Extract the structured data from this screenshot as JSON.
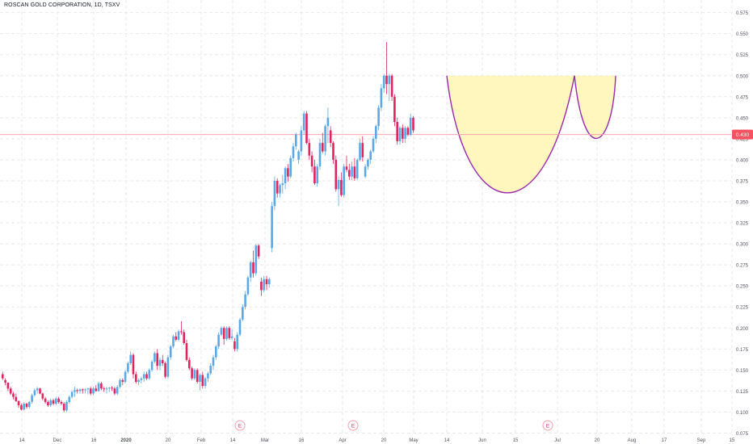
{
  "header": {
    "title": "ROSCAN GOLD CORPORATION, 1D, TSXV"
  },
  "price_label": "0.430",
  "earnings_marker": "E",
  "colors": {
    "up": "#5ba8e6",
    "down": "#e0245e",
    "resistance_line": "#f4a3b0",
    "pattern_fill": "#fff6b3",
    "pattern_stroke": "#9c27b0",
    "grid": "#e6e9ee",
    "axis_text": "#50535e",
    "price_label_bg": "#f7525f"
  },
  "chart_data": {
    "type": "candlestick",
    "title": "ROSCAN GOLD CORPORATION, 1D, TSXV",
    "y_ticks": [
      "0.075",
      "0.100",
      "0.125",
      "0.150",
      "0.175",
      "0.200",
      "0.225",
      "0.250",
      "0.275",
      "0.300",
      "0.325",
      "0.350",
      "0.375",
      "0.400",
      "0.425",
      "0.450",
      "0.475",
      "0.500",
      "0.525",
      "0.550",
      "0.575"
    ],
    "x_ticks": [
      "14",
      "Dec",
      "16",
      "2020",
      "20",
      "Feb",
      "14",
      "Mar",
      "16",
      "Apr",
      "20",
      "May",
      "14",
      "Jun",
      "15",
      "Jul",
      "20",
      "Aug",
      "17",
      "Sep",
      "15"
    ],
    "ylim": [
      0.062,
      0.59
    ],
    "grid": true,
    "horizontal_line": 0.43,
    "cup_and_handle": {
      "rim": 0.5,
      "cup_bottom": 0.348,
      "handle_bottom": 0.42
    },
    "candles": [
      [
        0.145,
        0.148,
        0.138,
        0.14
      ],
      [
        0.138,
        0.14,
        0.132,
        0.135
      ],
      [
        0.135,
        0.135,
        0.125,
        0.128
      ],
      [
        0.128,
        0.13,
        0.12,
        0.122
      ],
      [
        0.122,
        0.124,
        0.115,
        0.118
      ],
      [
        0.118,
        0.122,
        0.112,
        0.113
      ],
      [
        0.113,
        0.114,
        0.105,
        0.108
      ],
      [
        0.108,
        0.11,
        0.102,
        0.103
      ],
      [
        0.103,
        0.112,
        0.102,
        0.11
      ],
      [
        0.11,
        0.111,
        0.104,
        0.106
      ],
      [
        0.106,
        0.113,
        0.104,
        0.112
      ],
      [
        0.112,
        0.122,
        0.11,
        0.12
      ],
      [
        0.12,
        0.128,
        0.118,
        0.126
      ],
      [
        0.126,
        0.13,
        0.122,
        0.128
      ],
      [
        0.128,
        0.129,
        0.121,
        0.122
      ],
      [
        0.122,
        0.123,
        0.114,
        0.116
      ],
      [
        0.116,
        0.118,
        0.11,
        0.112
      ],
      [
        0.112,
        0.114,
        0.106,
        0.108
      ],
      [
        0.108,
        0.116,
        0.106,
        0.114
      ],
      [
        0.114,
        0.116,
        0.108,
        0.11
      ],
      [
        0.11,
        0.118,
        0.108,
        0.116
      ],
      [
        0.116,
        0.118,
        0.11,
        0.112
      ],
      [
        0.112,
        0.114,
        0.108,
        0.11
      ],
      [
        0.11,
        0.112,
        0.1,
        0.102
      ],
      [
        0.102,
        0.114,
        0.1,
        0.112
      ],
      [
        0.112,
        0.12,
        0.11,
        0.118
      ],
      [
        0.118,
        0.126,
        0.116,
        0.124
      ],
      [
        0.124,
        0.13,
        0.118,
        0.126
      ],
      [
        0.126,
        0.128,
        0.122,
        0.125
      ],
      [
        0.125,
        0.128,
        0.122,
        0.127
      ],
      [
        0.127,
        0.128,
        0.122,
        0.126
      ],
      [
        0.126,
        0.128,
        0.122,
        0.127
      ],
      [
        0.127,
        0.129,
        0.121,
        0.128
      ],
      [
        0.128,
        0.13,
        0.12,
        0.122
      ],
      [
        0.122,
        0.13,
        0.12,
        0.128
      ],
      [
        0.128,
        0.132,
        0.124,
        0.125
      ],
      [
        0.125,
        0.136,
        0.124,
        0.134
      ],
      [
        0.134,
        0.136,
        0.126,
        0.128
      ],
      [
        0.128,
        0.13,
        0.124,
        0.127
      ],
      [
        0.127,
        0.13,
        0.122,
        0.128
      ],
      [
        0.128,
        0.13,
        0.124,
        0.129
      ],
      [
        0.129,
        0.131,
        0.125,
        0.128
      ],
      [
        0.128,
        0.13,
        0.12,
        0.122
      ],
      [
        0.122,
        0.132,
        0.12,
        0.13
      ],
      [
        0.13,
        0.14,
        0.128,
        0.138
      ],
      [
        0.138,
        0.14,
        0.132,
        0.136
      ],
      [
        0.136,
        0.15,
        0.134,
        0.148
      ],
      [
        0.148,
        0.16,
        0.146,
        0.158
      ],
      [
        0.158,
        0.172,
        0.156,
        0.168
      ],
      [
        0.168,
        0.17,
        0.14,
        0.145
      ],
      [
        0.145,
        0.148,
        0.134,
        0.136
      ],
      [
        0.136,
        0.14,
        0.132,
        0.138
      ],
      [
        0.138,
        0.142,
        0.134,
        0.14
      ],
      [
        0.14,
        0.148,
        0.136,
        0.145
      ],
      [
        0.145,
        0.148,
        0.138,
        0.14
      ],
      [
        0.14,
        0.152,
        0.138,
        0.15
      ],
      [
        0.15,
        0.162,
        0.148,
        0.16
      ],
      [
        0.16,
        0.172,
        0.158,
        0.17
      ],
      [
        0.17,
        0.175,
        0.15,
        0.155
      ],
      [
        0.155,
        0.165,
        0.15,
        0.162
      ],
      [
        0.162,
        0.168,
        0.155,
        0.158
      ],
      [
        0.158,
        0.16,
        0.14,
        0.142
      ],
      [
        0.142,
        0.168,
        0.14,
        0.165
      ],
      [
        0.165,
        0.18,
        0.162,
        0.178
      ],
      [
        0.178,
        0.192,
        0.176,
        0.19
      ],
      [
        0.19,
        0.195,
        0.184,
        0.186
      ],
      [
        0.186,
        0.198,
        0.184,
        0.196
      ],
      [
        0.196,
        0.208,
        0.192,
        0.195
      ],
      [
        0.195,
        0.198,
        0.18,
        0.182
      ],
      [
        0.182,
        0.186,
        0.16,
        0.162
      ],
      [
        0.162,
        0.165,
        0.15,
        0.152
      ],
      [
        0.152,
        0.154,
        0.138,
        0.14
      ],
      [
        0.14,
        0.152,
        0.138,
        0.15
      ],
      [
        0.15,
        0.152,
        0.134,
        0.136
      ],
      [
        0.136,
        0.146,
        0.126,
        0.144
      ],
      [
        0.144,
        0.148,
        0.128,
        0.131
      ],
      [
        0.131,
        0.142,
        0.128,
        0.14
      ],
      [
        0.14,
        0.148,
        0.136,
        0.146
      ],
      [
        0.146,
        0.158,
        0.144,
        0.155
      ],
      [
        0.155,
        0.168,
        0.15,
        0.165
      ],
      [
        0.165,
        0.18,
        0.162,
        0.178
      ],
      [
        0.178,
        0.195,
        0.175,
        0.192
      ],
      [
        0.192,
        0.202,
        0.19,
        0.2
      ],
      [
        0.2,
        0.202,
        0.18,
        0.187
      ],
      [
        0.187,
        0.202,
        0.185,
        0.2
      ],
      [
        0.2,
        0.202,
        0.186,
        0.188
      ],
      [
        0.188,
        0.198,
        0.186,
        0.19
      ],
      [
        0.184,
        0.188,
        0.172,
        0.175
      ],
      [
        0.175,
        0.195,
        0.172,
        0.192
      ],
      [
        0.192,
        0.212,
        0.19,
        0.21
      ],
      [
        0.21,
        0.228,
        0.208,
        0.225
      ],
      [
        0.225,
        0.244,
        0.222,
        0.24
      ],
      [
        0.24,
        0.262,
        0.238,
        0.26
      ],
      [
        0.26,
        0.28,
        0.255,
        0.278
      ],
      [
        0.278,
        0.292,
        0.26,
        0.265
      ],
      [
        0.265,
        0.3,
        0.262,
        0.298
      ],
      [
        0.298,
        0.3,
        0.282,
        0.285
      ],
      [
        0.255,
        0.26,
        0.238,
        0.245
      ],
      [
        0.245,
        0.262,
        0.242,
        0.258
      ],
      [
        0.258,
        0.262,
        0.245,
        0.252
      ],
      [
        0.252,
        0.26,
        0.248,
        0.258
      ],
      [
        0.295,
        0.35,
        0.29,
        0.345
      ],
      [
        0.345,
        0.38,
        0.34,
        0.375
      ],
      [
        0.375,
        0.378,
        0.355,
        0.36
      ],
      [
        0.36,
        0.372,
        0.355,
        0.37
      ],
      [
        0.37,
        0.382,
        0.36,
        0.372
      ],
      [
        0.372,
        0.392,
        0.365,
        0.39
      ],
      [
        0.39,
        0.395,
        0.374,
        0.38
      ],
      [
        0.38,
        0.405,
        0.378,
        0.402
      ],
      [
        0.402,
        0.42,
        0.398,
        0.416
      ],
      [
        0.416,
        0.432,
        0.412,
        0.43
      ],
      [
        0.4,
        0.412,
        0.395,
        0.41
      ],
      [
        0.41,
        0.44,
        0.405,
        0.435
      ],
      [
        0.435,
        0.458,
        0.43,
        0.455
      ],
      [
        0.455,
        0.458,
        0.418,
        0.42
      ],
      [
        0.42,
        0.425,
        0.4,
        0.405
      ],
      [
        0.405,
        0.41,
        0.385,
        0.392
      ],
      [
        0.392,
        0.4,
        0.37,
        0.372
      ],
      [
        0.372,
        0.395,
        0.368,
        0.392
      ],
      [
        0.392,
        0.425,
        0.388,
        0.42
      ],
      [
        0.42,
        0.432,
        0.408,
        0.41
      ],
      [
        0.41,
        0.442,
        0.405,
        0.44
      ],
      [
        0.44,
        0.462,
        0.42,
        0.45
      ],
      [
        0.435,
        0.44,
        0.415,
        0.42
      ],
      [
        0.42,
        0.422,
        0.395,
        0.4
      ],
      [
        0.4,
        0.405,
        0.362,
        0.365
      ],
      [
        0.365,
        0.38,
        0.345,
        0.376
      ],
      [
        0.376,
        0.385,
        0.356,
        0.358
      ],
      [
        0.358,
        0.395,
        0.355,
        0.392
      ],
      [
        0.392,
        0.405,
        0.385,
        0.388
      ],
      [
        0.388,
        0.395,
        0.376,
        0.38
      ],
      [
        0.38,
        0.398,
        0.376,
        0.392
      ],
      [
        0.392,
        0.402,
        0.375,
        0.378
      ],
      [
        0.378,
        0.402,
        0.376,
        0.4
      ],
      [
        0.4,
        0.425,
        0.398,
        0.42
      ],
      [
        0.42,
        0.428,
        0.398,
        0.403
      ],
      [
        0.38,
        0.395,
        0.378,
        0.392
      ],
      [
        0.392,
        0.402,
        0.388,
        0.4
      ],
      [
        0.4,
        0.412,
        0.395,
        0.41
      ],
      [
        0.41,
        0.428,
        0.408,
        0.425
      ],
      [
        0.425,
        0.442,
        0.42,
        0.44
      ],
      [
        0.44,
        0.465,
        0.435,
        0.462
      ],
      [
        0.462,
        0.49,
        0.458,
        0.485
      ],
      [
        0.485,
        0.502,
        0.48,
        0.5
      ],
      [
        0.5,
        0.54,
        0.478,
        0.49
      ],
      [
        0.49,
        0.502,
        0.47,
        0.5
      ],
      [
        0.5,
        0.502,
        0.47,
        0.475
      ],
      [
        0.475,
        0.478,
        0.44,
        0.445
      ],
      [
        0.445,
        0.45,
        0.418,
        0.422
      ],
      [
        0.422,
        0.44,
        0.418,
        0.438
      ],
      [
        0.438,
        0.442,
        0.42,
        0.425
      ],
      [
        0.425,
        0.44,
        0.42,
        0.438
      ],
      [
        0.438,
        0.44,
        0.428,
        0.43
      ],
      [
        0.43,
        0.455,
        0.428,
        0.45
      ],
      [
        0.45,
        0.452,
        0.432,
        0.435
      ]
    ]
  }
}
